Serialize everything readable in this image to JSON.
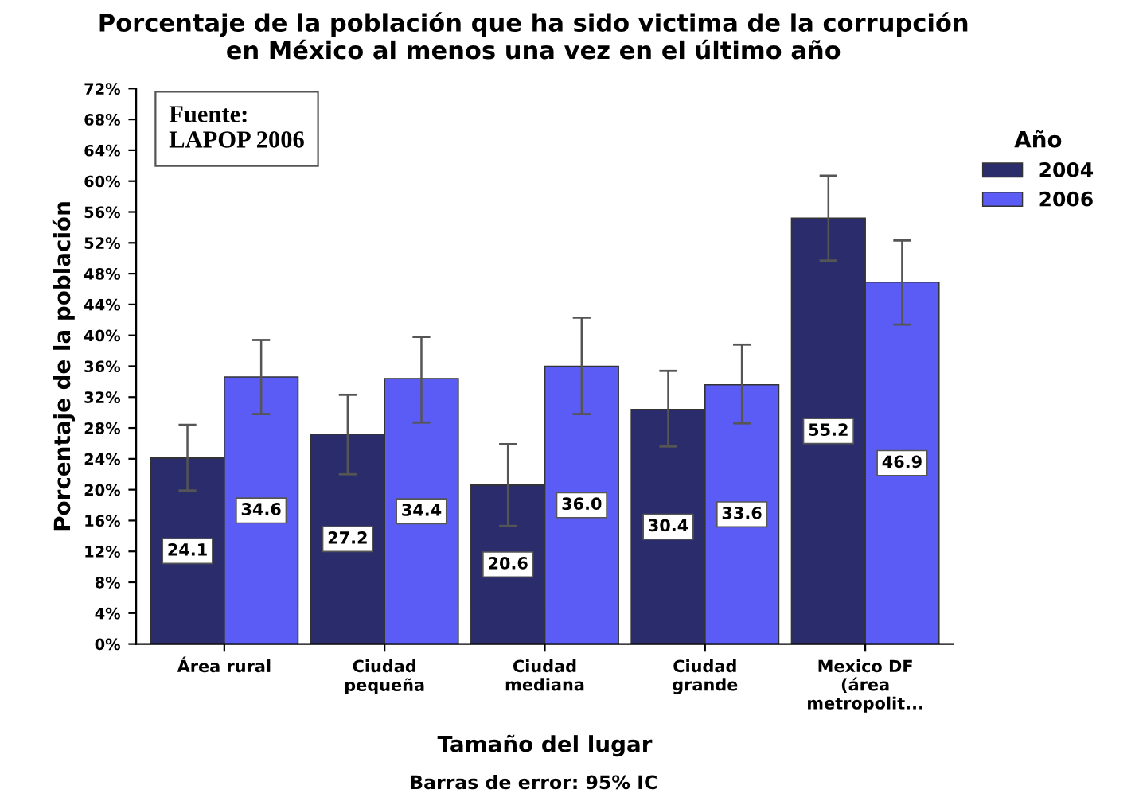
{
  "chart_data": {
    "type": "bar",
    "title": "Porcentaje de la población que ha sido victima de la corrupción\nen México al menos una vez en el último año",
    "xlabel": "Tamaño del lugar",
    "ylabel": "Porcentaje de la población",
    "legend_title": "Año",
    "categories": [
      "Área rural",
      "Ciudad\npequeña",
      "Ciudad\nmediana",
      "Ciudad\ngrande",
      "Mexico DF\n(área\nmetropolit..."
    ],
    "series": [
      {
        "name": "2004",
        "color": "#2b2c6c",
        "values": [
          24.1,
          27.2,
          20.6,
          30.4,
          55.2
        ],
        "errors": [
          [
            19.9,
            28.4
          ],
          [
            22.0,
            32.3
          ],
          [
            15.3,
            25.9
          ],
          [
            25.6,
            35.4
          ],
          [
            49.7,
            60.7
          ]
        ],
        "value_labels": [
          "24.1",
          "27.2",
          "20.6",
          "30.4",
          "55.2"
        ]
      },
      {
        "name": "2006",
        "color": "#5b5cf5",
        "values": [
          34.6,
          34.4,
          36.0,
          33.6,
          46.9
        ],
        "errors": [
          [
            29.8,
            39.4
          ],
          [
            28.7,
            39.8
          ],
          [
            29.8,
            42.3
          ],
          [
            28.6,
            38.8
          ],
          [
            41.4,
            52.3
          ]
        ],
        "value_labels": [
          "34.6",
          "34.4",
          "36.0",
          "33.6",
          "46.9"
        ]
      }
    ],
    "ylim": [
      0,
      72
    ],
    "yticks": [
      {
        "value": 0,
        "label": "0%"
      },
      {
        "value": 4,
        "label": "4%"
      },
      {
        "value": 8,
        "label": "8%"
      },
      {
        "value": 12,
        "label": "12%"
      },
      {
        "value": 16,
        "label": "16%"
      },
      {
        "value": 20,
        "label": "20%"
      },
      {
        "value": 24,
        "label": "24%"
      },
      {
        "value": 28,
        "label": "28%"
      },
      {
        "value": 32,
        "label": "32%"
      },
      {
        "value": 36,
        "label": "36%"
      },
      {
        "value": 40,
        "label": "40%"
      },
      {
        "value": 44,
        "label": "44%"
      },
      {
        "value": 48,
        "label": "48%"
      },
      {
        "value": 52,
        "label": "52%"
      },
      {
        "value": 56,
        "label": "56%"
      },
      {
        "value": 60,
        "label": "60%"
      },
      {
        "value": 64,
        "label": "64%"
      },
      {
        "value": 68,
        "label": "68%"
      },
      {
        "value": 72,
        "label": "72%"
      }
    ],
    "legend": "top right",
    "grid": false,
    "annotations": [
      "Fuente:\nLAPOP 2006",
      "Barras de error: 95% IC"
    ]
  }
}
